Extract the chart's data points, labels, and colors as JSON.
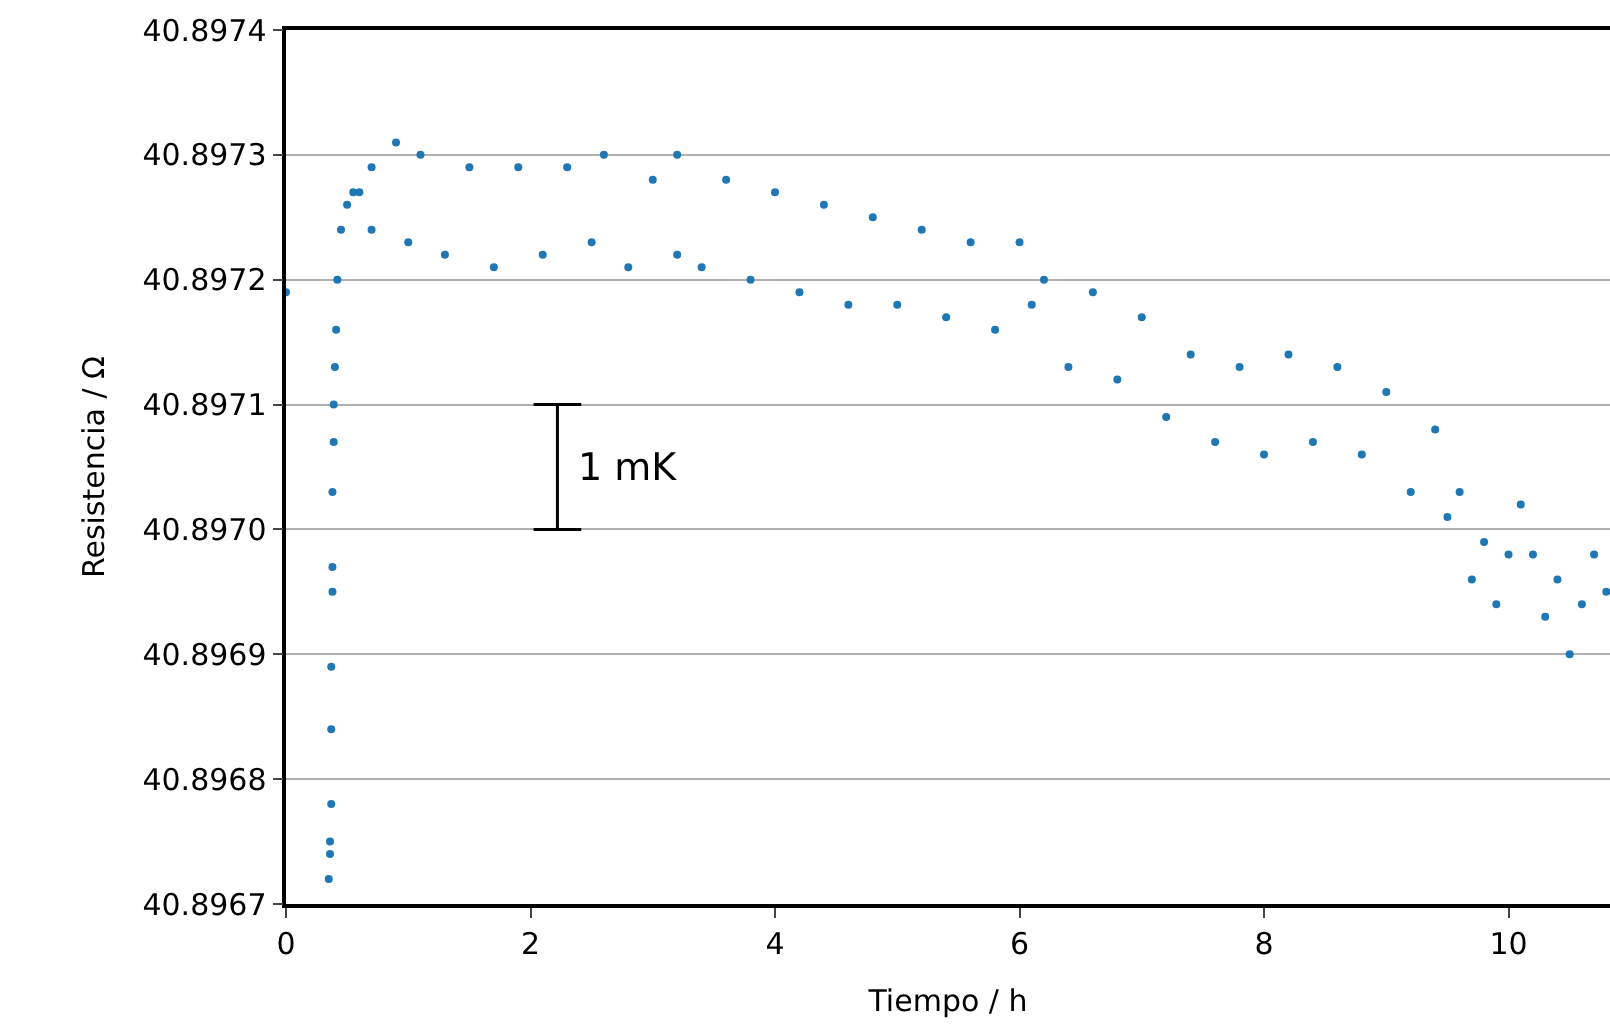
{
  "chart_data": {
    "type": "scatter",
    "xlabel": "Tiempo / h",
    "ylabel": "Resistencia / Ω",
    "x": [
      0,
      0.35,
      0.36,
      0.36,
      0.37,
      0.37,
      0.37,
      0.38,
      0.38,
      0.38,
      0.39,
      0.39,
      0.4,
      0.41,
      0.42,
      0.45,
      0.5,
      0.55,
      0.6,
      0.7,
      0.7,
      0.9,
      1.0,
      1.1,
      1.3,
      1.5,
      1.7,
      1.9,
      2.1,
      2.3,
      2.5,
      2.6,
      2.8,
      3.0,
      3.2,
      3.2,
      3.4,
      3.6,
      3.8,
      4.0,
      4.2,
      4.4,
      4.6,
      4.8,
      5.0,
      5.2,
      5.4,
      5.6,
      5.8,
      6.0,
      6.1,
      6.2,
      6.4,
      6.6,
      6.8,
      7.0,
      7.2,
      7.4,
      7.6,
      7.8,
      8.0,
      8.2,
      8.4,
      8.6,
      8.8,
      9.0,
      9.2,
      9.4,
      9.5,
      9.6,
      9.7,
      9.8,
      9.9,
      10.0,
      10.1,
      10.2,
      10.3,
      10.4,
      10.5,
      10.6,
      10.7,
      10.8
    ],
    "series": [
      {
        "color": "#1f77b4",
        "values": [
          40.89719,
          40.89672,
          40.89674,
          40.89675,
          40.89678,
          40.89684,
          40.89689,
          40.89695,
          40.89697,
          40.89703,
          40.89707,
          40.8971,
          40.89713,
          40.89716,
          40.8972,
          40.89724,
          40.89726,
          40.89727,
          40.89727,
          40.89729,
          40.89724,
          40.89731,
          40.89723,
          40.8973,
          40.89722,
          40.89729,
          40.89721,
          40.89729,
          40.89722,
          40.89729,
          40.89723,
          40.8973,
          40.89721,
          40.89728,
          40.89722,
          40.8973,
          40.89721,
          40.89728,
          40.8972,
          40.89727,
          40.89719,
          40.89726,
          40.89718,
          40.89725,
          40.89718,
          40.89724,
          40.89717,
          40.89723,
          40.89716,
          40.89723,
          40.89718,
          40.8972,
          40.89713,
          40.89719,
          40.89712,
          40.89717,
          40.89709,
          40.89714,
          40.89707,
          40.89713,
          40.89706,
          40.89714,
          40.89707,
          40.89713,
          40.89706,
          40.89711,
          40.89703,
          40.89708,
          40.89701,
          40.89703,
          40.89696,
          40.89699,
          40.89694,
          40.89698,
          40.89702,
          40.89698,
          40.89693,
          40.89696,
          40.8969,
          40.89694,
          40.89698,
          40.89695
        ]
      }
    ],
    "xlim": [
      0,
      10.83
    ],
    "xticks": [
      0,
      2,
      4,
      6,
      8,
      10
    ],
    "ylim": [
      40.8967,
      40.8974
    ],
    "yticks": [
      40.8967,
      40.8968,
      40.8969,
      {
        "value": 40.897,
        "label": "40.8970"
      },
      40.8971,
      40.8972,
      40.8973,
      40.8974
    ],
    "grid": "y",
    "marker": "circle",
    "annotations": [
      "1 mK"
    ]
  }
}
